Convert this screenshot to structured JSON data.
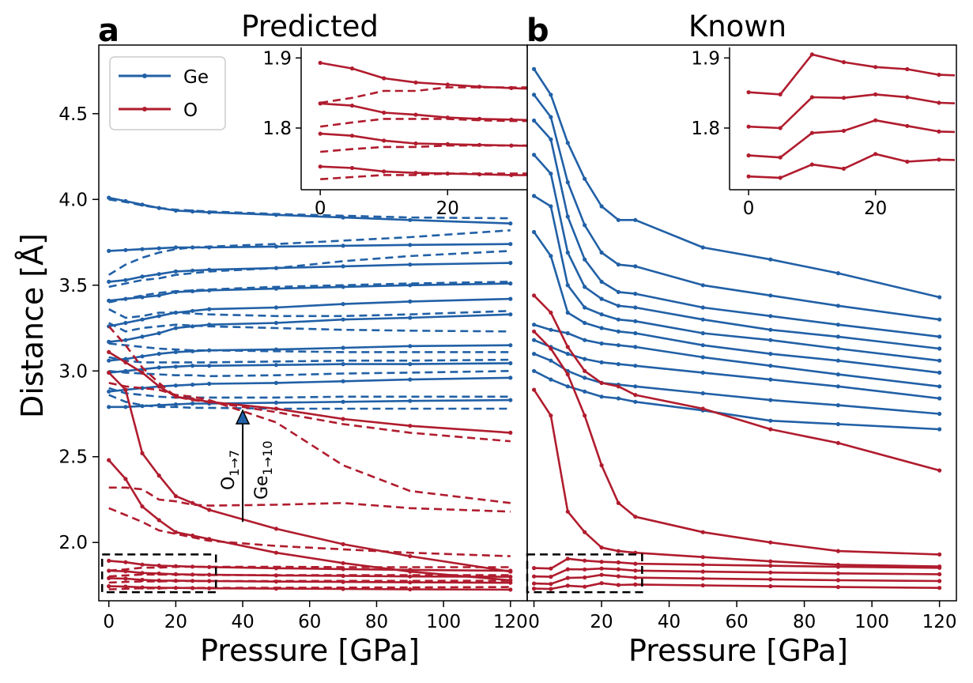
{
  "chart_data": [
    {
      "panel": "a",
      "type": "line",
      "title": "Predicted",
      "xlabel": "Pressure [GPa]",
      "ylabel": "Distance [Å]",
      "xlim": [
        -3,
        125
      ],
      "ylim": [
        1.66,
        4.9
      ],
      "xticks": [
        "0",
        "20",
        "40",
        "60",
        "80",
        "100",
        "120"
      ],
      "yticks": [
        "2.0",
        "2.5",
        "3.0",
        "3.5",
        "4.0",
        "4.5"
      ],
      "legend": {
        "position": "top-left",
        "entries": [
          {
            "label": "Ge",
            "color": "#2160a6"
          },
          {
            "label": "O",
            "color": "#b01c2e"
          }
        ]
      },
      "annotation": {
        "text_o": "O",
        "sub_o": "1→7",
        "text_ge": "Ge",
        "sub_ge": "1→10",
        "arrow_x": 40,
        "arrow_from": 2.12,
        "arrow_to": 2.77
      },
      "zoom_box": {
        "x": [
          -2,
          32
        ],
        "y": [
          1.71,
          1.93
        ]
      },
      "x": [
        0,
        5,
        10,
        15,
        20,
        25,
        30,
        50,
        70,
        90,
        120
      ],
      "series": [
        {
          "element": "Ge",
          "style": "solid",
          "values": [
            4.01,
            3.99,
            3.97,
            3.95,
            3.935,
            3.93,
            3.925,
            3.91,
            3.895,
            3.88,
            3.86
          ]
        },
        {
          "element": "Ge",
          "style": "solid",
          "values": [
            3.7,
            3.705,
            3.71,
            3.715,
            3.72,
            3.72,
            3.72,
            3.725,
            3.73,
            3.735,
            3.74
          ]
        },
        {
          "element": "Ge",
          "style": "solid",
          "values": [
            3.52,
            3.53,
            3.55,
            3.565,
            3.58,
            3.585,
            3.59,
            3.6,
            3.61,
            3.62,
            3.63
          ]
        },
        {
          "element": "Ge",
          "style": "solid",
          "values": [
            3.41,
            3.42,
            3.43,
            3.44,
            3.46,
            3.465,
            3.47,
            3.48,
            3.49,
            3.5,
            3.51
          ]
        },
        {
          "element": "Ge",
          "style": "solid",
          "values": [
            3.26,
            3.28,
            3.3,
            3.32,
            3.34,
            3.35,
            3.36,
            3.37,
            3.39,
            3.405,
            3.42
          ]
        },
        {
          "element": "Ge",
          "style": "solid",
          "values": [
            3.17,
            3.18,
            3.2,
            3.22,
            3.25,
            3.26,
            3.27,
            3.28,
            3.3,
            3.31,
            3.33
          ]
        },
        {
          "element": "Ge",
          "style": "solid",
          "values": [
            3.06,
            3.07,
            3.085,
            3.1,
            3.11,
            3.115,
            3.12,
            3.125,
            3.135,
            3.145,
            3.15
          ]
        },
        {
          "element": "Ge",
          "style": "solid",
          "values": [
            2.99,
            3.0,
            3.01,
            3.02,
            3.025,
            3.03,
            3.03,
            3.035,
            3.04,
            3.04,
            3.045
          ]
        },
        {
          "element": "Ge",
          "style": "solid",
          "values": [
            2.88,
            2.89,
            2.9,
            2.91,
            2.915,
            2.92,
            2.925,
            2.93,
            2.94,
            2.95,
            2.96
          ]
        },
        {
          "element": "Ge",
          "style": "solid",
          "values": [
            2.79,
            2.79,
            2.795,
            2.8,
            2.805,
            2.81,
            2.81,
            2.815,
            2.82,
            2.825,
            2.83
          ]
        },
        {
          "element": "Ge",
          "style": "dashed",
          "values": [
            4.0,
            3.985,
            3.965,
            3.95,
            3.94,
            3.935,
            3.93,
            3.915,
            3.905,
            3.895,
            3.89
          ]
        },
        {
          "element": "Ge",
          "style": "dashed",
          "values": [
            3.56,
            3.62,
            3.66,
            3.69,
            3.71,
            3.72,
            3.725,
            3.74,
            3.76,
            3.78,
            3.82
          ]
        },
        {
          "element": "Ge",
          "style": "dashed",
          "values": [
            3.49,
            3.51,
            3.53,
            3.54,
            3.56,
            3.57,
            3.58,
            3.6,
            3.64,
            3.67,
            3.7
          ]
        },
        {
          "element": "Ge",
          "style": "dashed",
          "values": [
            3.4,
            3.42,
            3.44,
            3.455,
            3.465,
            3.47,
            3.475,
            3.49,
            3.5,
            3.51,
            3.52
          ]
        },
        {
          "element": "Ge",
          "style": "dashed",
          "values": [
            3.36,
            3.31,
            3.32,
            3.34,
            3.34,
            3.335,
            3.33,
            3.32,
            3.32,
            3.33,
            3.35
          ]
        },
        {
          "element": "Ge",
          "style": "dashed",
          "values": [
            3.28,
            3.23,
            3.25,
            3.26,
            3.27,
            3.265,
            3.26,
            3.25,
            3.24,
            3.235,
            3.23
          ]
        },
        {
          "element": "Ge",
          "style": "dashed",
          "values": [
            3.16,
            3.15,
            3.14,
            3.13,
            3.125,
            3.12,
            3.12,
            3.115,
            3.11,
            3.11,
            3.11
          ]
        },
        {
          "element": "Ge",
          "style": "dashed",
          "values": [
            3.08,
            3.06,
            3.05,
            3.05,
            3.05,
            3.05,
            3.05,
            3.055,
            3.06,
            3.06,
            3.065
          ]
        },
        {
          "element": "Ge",
          "style": "dashed",
          "values": [
            3.0,
            2.99,
            2.985,
            2.98,
            2.975,
            2.975,
            2.97,
            2.975,
            2.985,
            2.99,
            3.0
          ]
        },
        {
          "element": "Ge",
          "style": "dashed",
          "values": [
            2.9,
            2.87,
            2.86,
            2.85,
            2.845,
            2.845,
            2.845,
            2.845,
            2.85,
            2.85,
            2.85
          ]
        },
        {
          "element": "Ge",
          "style": "dashed",
          "values": [
            2.86,
            2.82,
            2.8,
            2.79,
            2.79,
            2.785,
            2.785,
            2.78,
            2.78,
            2.78,
            2.78
          ]
        },
        {
          "element": "O",
          "style": "solid",
          "values": [
            3.11,
            3.05,
            2.99,
            2.91,
            2.85,
            2.835,
            2.82,
            2.78,
            2.72,
            2.68,
            2.64
          ]
        },
        {
          "element": "O",
          "style": "solid",
          "values": [
            2.99,
            2.89,
            2.52,
            2.39,
            2.27,
            2.23,
            2.19,
            2.08,
            1.99,
            1.92,
            1.83
          ]
        },
        {
          "element": "O",
          "style": "solid",
          "values": [
            2.48,
            2.37,
            2.21,
            2.13,
            2.06,
            2.04,
            2.02,
            1.94,
            1.88,
            1.83,
            1.78
          ]
        },
        {
          "element": "O",
          "style": "solid",
          "values": [
            1.893,
            1.885,
            1.871,
            1.865,
            1.862,
            1.859,
            1.857,
            1.85,
            1.845,
            1.84,
            1.835
          ]
        },
        {
          "element": "O",
          "style": "solid",
          "values": [
            1.835,
            1.832,
            1.822,
            1.819,
            1.815,
            1.813,
            1.812,
            1.808,
            1.805,
            1.802,
            1.8
          ]
        },
        {
          "element": "O",
          "style": "solid",
          "values": [
            1.792,
            1.789,
            1.782,
            1.778,
            1.777,
            1.776,
            1.775,
            1.772,
            1.77,
            1.768,
            1.765
          ]
        },
        {
          "element": "O",
          "style": "solid",
          "values": [
            1.745,
            1.743,
            1.738,
            1.736,
            1.735,
            1.734,
            1.733,
            1.731,
            1.729,
            1.727,
            1.725
          ]
        },
        {
          "element": "O",
          "style": "dashed",
          "values": [
            3.26,
            3.15,
            3.02,
            2.93,
            2.85,
            2.83,
            2.82,
            2.76,
            2.69,
            2.64,
            2.59
          ]
        },
        {
          "element": "O",
          "style": "dashed",
          "values": [
            2.93,
            2.91,
            2.9,
            2.89,
            2.86,
            2.85,
            2.83,
            2.7,
            2.45,
            2.3,
            2.23
          ]
        },
        {
          "element": "O",
          "style": "dashed",
          "values": [
            2.32,
            2.32,
            2.31,
            2.25,
            2.24,
            2.22,
            2.215,
            2.22,
            2.23,
            2.2,
            2.18
          ]
        },
        {
          "element": "O",
          "style": "dashed",
          "values": [
            2.2,
            2.16,
            2.12,
            2.07,
            2.05,
            2.03,
            2.01,
            1.98,
            1.96,
            1.94,
            1.92
          ]
        },
        {
          "element": "O",
          "style": "dashed",
          "values": [
            1.836,
            1.843,
            1.853,
            1.853,
            1.858,
            1.858,
            1.858,
            1.858,
            1.856,
            1.856,
            1.856
          ]
        },
        {
          "element": "O",
          "style": "dashed",
          "values": [
            1.802,
            1.808,
            1.813,
            1.813,
            1.813,
            1.811,
            1.81,
            1.81,
            1.81,
            1.81,
            1.81
          ]
        },
        {
          "element": "O",
          "style": "dashed",
          "values": [
            1.766,
            1.77,
            1.773,
            1.773,
            1.775,
            1.775,
            1.775,
            1.775,
            1.776,
            1.776,
            1.777
          ]
        },
        {
          "element": "O",
          "style": "dashed",
          "values": [
            1.727,
            1.73,
            1.733,
            1.733,
            1.735,
            1.735,
            1.735,
            1.736,
            1.737,
            1.738,
            1.74
          ]
        }
      ],
      "inset": {
        "xlim": [
          -3,
          32.5
        ],
        "ylim": [
          1.712,
          1.915
        ],
        "xticks": [
          "0",
          "20"
        ],
        "yticks": [
          "1.8",
          "1.9"
        ],
        "series_indices": [
          24,
          25,
          26,
          27,
          32,
          33,
          34,
          35
        ]
      }
    },
    {
      "panel": "b",
      "type": "line",
      "title": "Known",
      "xlabel": "Pressure [GPa]",
      "ylabel": "",
      "xlim": [
        -2,
        125
      ],
      "ylim": [
        1.66,
        4.9
      ],
      "xticks": [
        "0",
        "20",
        "40",
        "60",
        "80",
        "100",
        "120"
      ],
      "yticks": [],
      "zoom_box": {
        "x": [
          -2,
          32
        ],
        "y": [
          1.71,
          1.93
        ]
      },
      "x": [
        0,
        5,
        10,
        15,
        20,
        25,
        30,
        50,
        70,
        90,
        120
      ],
      "series": [
        {
          "element": "Ge",
          "style": "solid",
          "values": [
            4.76,
            4.61,
            4.33,
            4.12,
            3.96,
            3.88,
            3.88,
            3.72,
            3.65,
            3.57,
            3.43
          ]
        },
        {
          "element": "Ge",
          "style": "solid",
          "values": [
            4.61,
            4.48,
            4.1,
            3.85,
            3.69,
            3.62,
            3.61,
            3.5,
            3.44,
            3.38,
            3.3
          ]
        },
        {
          "element": "Ge",
          "style": "solid",
          "values": [
            4.46,
            4.35,
            3.9,
            3.65,
            3.52,
            3.46,
            3.45,
            3.37,
            3.32,
            3.27,
            3.2
          ]
        },
        {
          "element": "Ge",
          "style": "solid",
          "values": [
            4.26,
            4.15,
            3.69,
            3.49,
            3.42,
            3.38,
            3.37,
            3.3,
            3.24,
            3.2,
            3.13
          ]
        },
        {
          "element": "Ge",
          "style": "solid",
          "values": [
            4.02,
            3.96,
            3.5,
            3.37,
            3.33,
            3.3,
            3.29,
            3.22,
            3.18,
            3.13,
            3.06
          ]
        },
        {
          "element": "Ge",
          "style": "solid",
          "values": [
            3.81,
            3.67,
            3.34,
            3.28,
            3.25,
            3.23,
            3.22,
            3.15,
            3.1,
            3.06,
            2.99
          ]
        },
        {
          "element": "Ge",
          "style": "solid",
          "values": [
            3.27,
            3.24,
            3.22,
            3.18,
            3.16,
            3.15,
            3.14,
            3.08,
            3.03,
            2.98,
            2.91
          ]
        },
        {
          "element": "Ge",
          "style": "solid",
          "values": [
            3.18,
            3.14,
            3.1,
            3.07,
            3.05,
            3.04,
            3.03,
            2.99,
            2.95,
            2.91,
            2.84
          ]
        },
        {
          "element": "Ge",
          "style": "solid",
          "values": [
            3.1,
            3.06,
            3.0,
            2.96,
            2.93,
            2.92,
            2.91,
            2.87,
            2.83,
            2.8,
            2.75
          ]
        },
        {
          "element": "Ge",
          "style": "solid",
          "values": [
            3.0,
            2.95,
            2.91,
            2.88,
            2.85,
            2.84,
            2.82,
            2.77,
            2.71,
            2.69,
            2.66
          ]
        },
        {
          "element": "O",
          "style": "solid",
          "values": [
            3.44,
            3.34,
            3.14,
            3.0,
            2.93,
            2.91,
            2.86,
            2.78,
            2.66,
            2.58,
            2.42
          ]
        },
        {
          "element": "O",
          "style": "solid",
          "values": [
            3.23,
            3.13,
            2.98,
            2.74,
            2.45,
            2.23,
            2.15,
            2.06,
            2.0,
            1.95,
            1.93
          ]
        },
        {
          "element": "O",
          "style": "solid",
          "values": [
            2.89,
            2.74,
            2.18,
            2.06,
            1.97,
            1.95,
            1.94,
            1.915,
            1.89,
            1.87,
            1.86
          ]
        },
        {
          "element": "O",
          "style": "solid",
          "values": [
            1.851,
            1.848,
            1.905,
            1.894,
            1.887,
            1.884,
            1.876,
            1.87,
            1.864,
            1.858,
            1.852
          ]
        },
        {
          "element": "O",
          "style": "solid",
          "values": [
            1.802,
            1.8,
            1.844,
            1.843,
            1.848,
            1.844,
            1.836,
            1.83,
            1.825,
            1.82,
            1.815
          ]
        },
        {
          "element": "O",
          "style": "solid",
          "values": [
            1.761,
            1.758,
            1.793,
            1.796,
            1.811,
            1.803,
            1.795,
            1.79,
            1.785,
            1.78,
            1.775
          ]
        },
        {
          "element": "O",
          "style": "solid",
          "values": [
            1.731,
            1.729,
            1.748,
            1.742,
            1.763,
            1.752,
            1.755,
            1.75,
            1.745,
            1.74,
            1.735
          ]
        }
      ],
      "inset": {
        "xlim": [
          -3,
          32.5
        ],
        "ylim": [
          1.712,
          1.915
        ],
        "xticks": [
          "0",
          "20"
        ],
        "yticks": [
          "1.8",
          "1.9"
        ],
        "series_indices": [
          13,
          14,
          15,
          16
        ]
      }
    }
  ],
  "colors": {
    "ge": "#2160a6",
    "o": "#b01c2e"
  }
}
